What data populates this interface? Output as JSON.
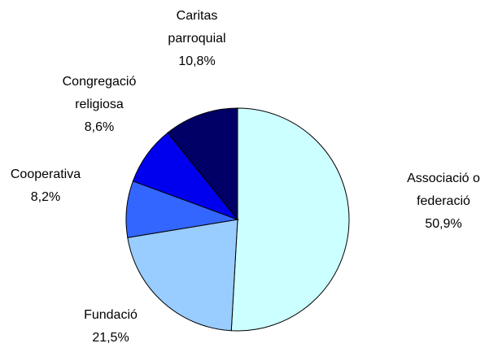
{
  "chart_data": {
    "type": "pie",
    "categories": [
      [
        "Associació o",
        "federació"
      ],
      [
        "Fundació"
      ],
      [
        "Cooperativa"
      ],
      [
        "Congregació",
        "religiosa"
      ],
      [
        "Caritas",
        "parroquial"
      ]
    ],
    "values": [
      50.9,
      21.5,
      8.2,
      8.6,
      10.8
    ],
    "value_labels": [
      "50,9%",
      "21,5%",
      "8,2%",
      "8,6%",
      "10,8%"
    ],
    "colors": [
      "#ccffff",
      "#99ccff",
      "#3366ff",
      "#0000ee",
      "#000066"
    ]
  }
}
